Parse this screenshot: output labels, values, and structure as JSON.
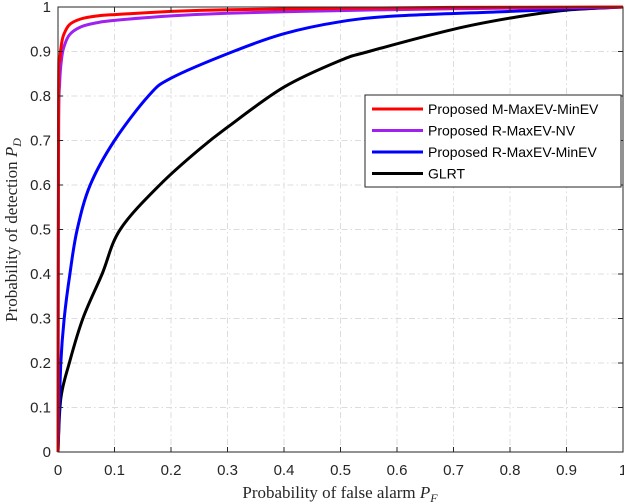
{
  "chart_data": {
    "type": "line",
    "title": "",
    "xlabel": "Probability of false alarm P_F",
    "ylabel": "Probability of detection P_D",
    "xlim": [
      0,
      1
    ],
    "ylim": [
      0,
      1
    ],
    "xticks": [
      "0",
      "0.1",
      "0.2",
      "0.3",
      "0.4",
      "0.5",
      "0.6",
      "0.7",
      "0.8",
      "0.9",
      "1"
    ],
    "yticks": [
      "0",
      "0.1",
      "0.2",
      "0.3",
      "0.4",
      "0.5",
      "0.6",
      "0.7",
      "0.8",
      "0.9",
      "1"
    ],
    "grid": true,
    "legend_position": "upper right (inside)",
    "series": [
      {
        "name": "Proposed M-MaxEV-MinEV",
        "color": "#ff0000",
        "x": [
          0,
          0.001,
          0.003,
          0.006,
          0.01,
          0.02,
          0.04,
          0.07,
          0.1,
          0.2,
          0.3,
          0.5,
          0.7,
          1.0
        ],
        "y": [
          0,
          0.8,
          0.88,
          0.915,
          0.937,
          0.96,
          0.973,
          0.98,
          0.983,
          0.99,
          0.994,
          0.997,
          0.999,
          1.0
        ]
      },
      {
        "name": "Proposed R-MaxEV-NV",
        "color": "#a020f0",
        "x": [
          0,
          0.001,
          0.003,
          0.006,
          0.01,
          0.02,
          0.04,
          0.07,
          0.1,
          0.2,
          0.3,
          0.5,
          0.7,
          1.0
        ],
        "y": [
          0,
          0.7,
          0.83,
          0.88,
          0.908,
          0.937,
          0.955,
          0.965,
          0.97,
          0.98,
          0.986,
          0.992,
          0.996,
          1.0
        ]
      },
      {
        "name": "Proposed R-MaxEV-MinEV",
        "color": "#0000ff",
        "x": [
          0,
          0.005,
          0.011,
          0.021,
          0.034,
          0.057,
          0.1,
          0.16,
          0.2,
          0.31,
          0.4,
          0.5,
          0.6,
          0.8,
          1.0
        ],
        "y": [
          0,
          0.2,
          0.3,
          0.4,
          0.5,
          0.6,
          0.7,
          0.8,
          0.84,
          0.9,
          0.94,
          0.967,
          0.98,
          0.99,
          1.0
        ]
      },
      {
        "name": "GLRT",
        "color": "#000000",
        "x": [
          0,
          0.005,
          0.02,
          0.044,
          0.078,
          0.11,
          0.18,
          0.25,
          0.3,
          0.4,
          0.5,
          0.55,
          0.7,
          0.8,
          0.9,
          1.0
        ],
        "y": [
          0,
          0.12,
          0.2,
          0.3,
          0.4,
          0.5,
          0.6,
          0.68,
          0.73,
          0.82,
          0.88,
          0.9,
          0.95,
          0.975,
          0.993,
          1.0
        ]
      }
    ]
  }
}
